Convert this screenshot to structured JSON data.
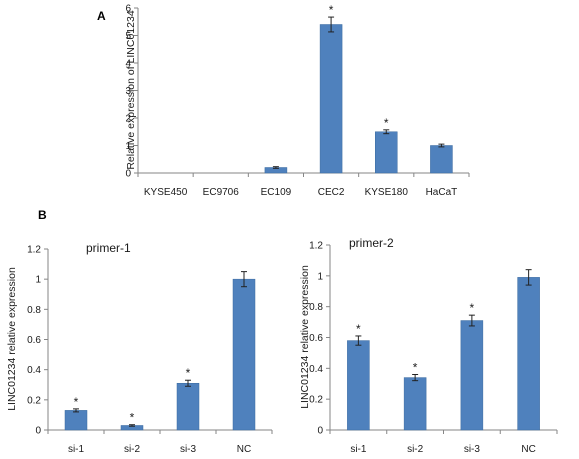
{
  "panel_labels": {
    "a": "A",
    "b": "B"
  },
  "colors": {
    "bar": "#4F81BD",
    "bar_edge": "#3A6A9F",
    "axis": "#868686",
    "error": "#222222"
  },
  "chart_data": [
    {
      "type": "bar",
      "panel": "A",
      "title": "",
      "xlabel": "",
      "ylabel": "Relative expression of LINC01234",
      "ylim": [
        0,
        6
      ],
      "yticks": [
        0,
        1,
        2,
        3,
        4,
        5,
        6
      ],
      "categories": [
        "KYSE450",
        "EC9706",
        "EC109",
        "CEC2",
        "KYSE180",
        "HaCaT"
      ],
      "values": [
        0.0,
        0.0,
        0.2,
        5.4,
        1.5,
        1.0
      ],
      "errors": [
        0.0,
        0.0,
        0.03,
        0.27,
        0.07,
        0.05
      ],
      "significance": [
        "",
        "",
        "",
        "*",
        "*",
        ""
      ],
      "grid": false,
      "legend": "none"
    },
    {
      "type": "bar",
      "panel": "B",
      "title": "primer-1",
      "xlabel": "",
      "ylabel": "LINC01234 relative expression",
      "ylim": [
        0,
        1.2
      ],
      "yticks": [
        0,
        0.2,
        0.4,
        0.6,
        0.8,
        1,
        1.2
      ],
      "categories": [
        "si-1",
        "si-2",
        "si-3",
        "NC"
      ],
      "values": [
        0.13,
        0.03,
        0.31,
        1.0
      ],
      "errors": [
        0.01,
        0.005,
        0.02,
        0.05
      ],
      "significance": [
        "*",
        "*",
        "*",
        ""
      ],
      "grid": false,
      "legend": "none"
    },
    {
      "type": "bar",
      "panel": "B",
      "title": "primer-2",
      "xlabel": "",
      "ylabel": "LINC01234 relative expression",
      "ylim": [
        0,
        1.2
      ],
      "yticks": [
        0,
        0.2,
        0.4,
        0.6,
        0.8,
        1,
        1.2
      ],
      "categories": [
        "si-1",
        "si-2",
        "si-3",
        "NC"
      ],
      "values": [
        0.58,
        0.34,
        0.71,
        0.99
      ],
      "errors": [
        0.03,
        0.02,
        0.035,
        0.05
      ],
      "significance": [
        "*",
        "*",
        "*",
        ""
      ],
      "grid": false,
      "legend": "none"
    }
  ]
}
